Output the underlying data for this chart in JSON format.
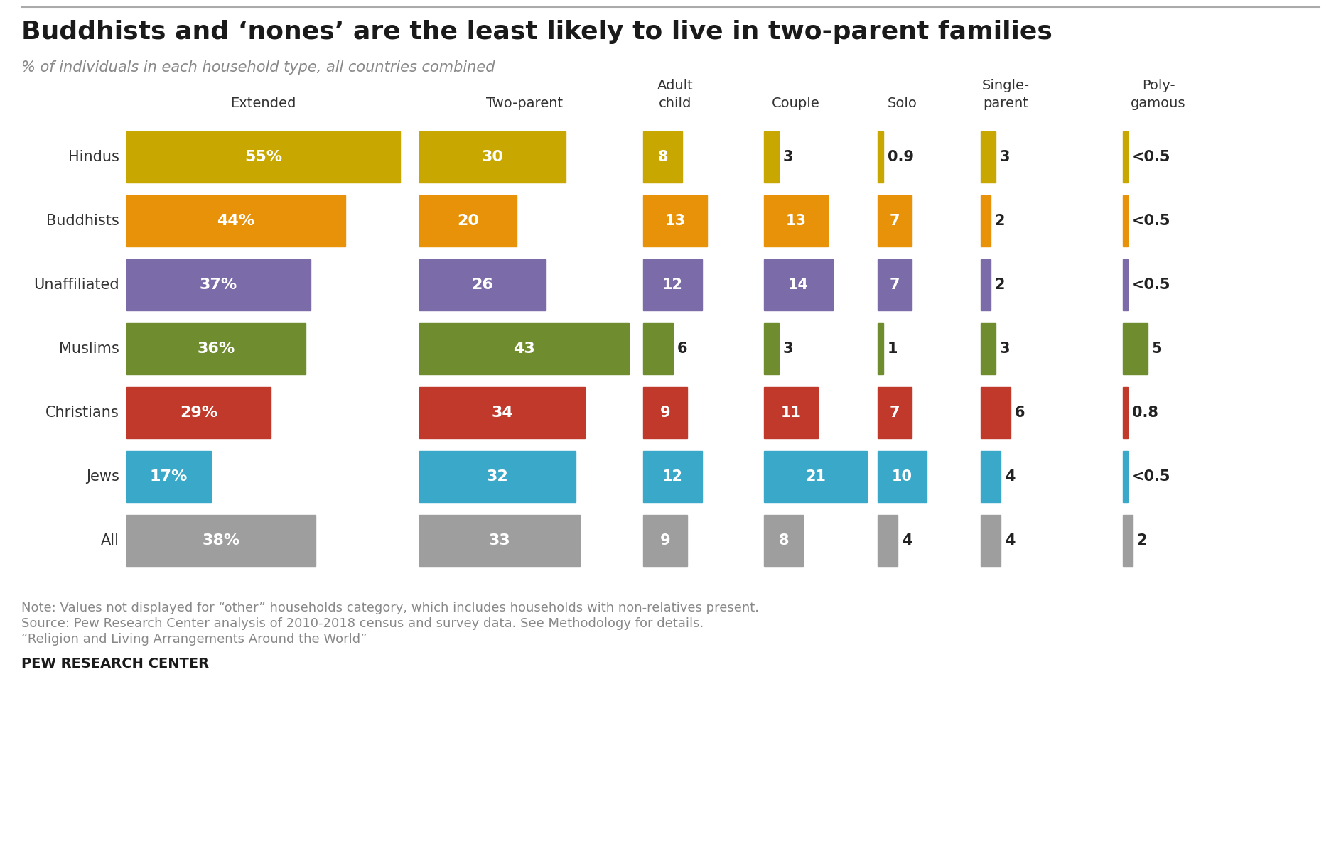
{
  "title": "Buddhists and ‘nones’ are the least likely to live in two-parent families",
  "subtitle": "% of individuals in each household type, all countries combined",
  "religions": [
    "Hindus",
    "Buddhists",
    "Unaffiliated",
    "Muslims",
    "Christians",
    "Jews",
    "All"
  ],
  "colors": [
    "#C8A800",
    "#E8920A",
    "#7B6BA8",
    "#6F8C2E",
    "#C0392B",
    "#3AA8C8",
    "#9E9E9E"
  ],
  "data": [
    [
      55,
      30,
      8,
      3,
      0.9,
      3,
      0.4
    ],
    [
      44,
      20,
      13,
      13,
      7,
      2,
      0.4
    ],
    [
      37,
      26,
      12,
      14,
      7,
      2,
      0.4
    ],
    [
      36,
      43,
      6,
      3,
      1,
      3,
      5
    ],
    [
      29,
      34,
      9,
      11,
      7,
      6,
      0.8
    ],
    [
      17,
      32,
      12,
      21,
      10,
      4,
      0.4
    ],
    [
      38,
      33,
      9,
      8,
      4,
      4,
      2
    ]
  ],
  "display_labels": [
    [
      "55%",
      "30",
      "8",
      "3",
      "0.9",
      "3",
      "<0.5"
    ],
    [
      "44%",
      "20",
      "13",
      "13",
      "7",
      "2",
      "<0.5"
    ],
    [
      "37%",
      "26",
      "12",
      "14",
      "7",
      "2",
      "<0.5"
    ],
    [
      "36%",
      "43",
      "6",
      "3",
      "1",
      "3",
      "5"
    ],
    [
      "29%",
      "34",
      "9",
      "11",
      "7",
      "6",
      "0.8"
    ],
    [
      "17%",
      "32",
      "12",
      "21",
      "10",
      "4",
      "<0.5"
    ],
    [
      "38%",
      "33",
      "9",
      "8",
      "4",
      "4",
      "2"
    ]
  ],
  "note": "Note: Values not displayed for “other” households category, which includes households with non-relatives present.",
  "source1": "Source: Pew Research Center analysis of 2010-2018 census and survey data. See Methodology for details.",
  "source2": "“Religion and Living Arrangements Around the World”",
  "footer": "PEW RESEARCH CENTER",
  "bg_color": "#FFFFFF",
  "text_color_dark": "#2C2C2C",
  "text_color_gray": "#888888"
}
